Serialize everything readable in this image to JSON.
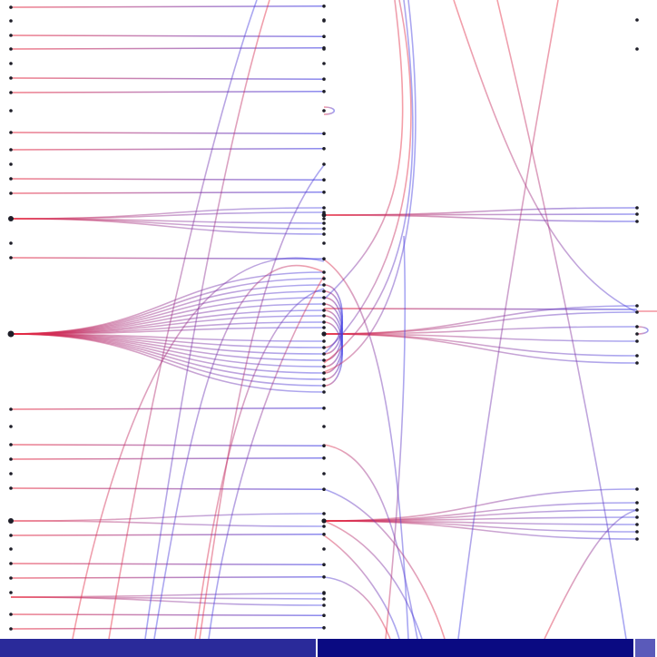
{
  "colors": {
    "background": "#ffffff",
    "edge_out": "#e8283c",
    "edge_in": "#3c3ce6",
    "node": "#1e1e28",
    "footer_left": "#2a2a9a",
    "footer_mid": "#0a0a82",
    "footer_right": "#5a5aba"
  },
  "footer": {
    "segments": [
      {
        "name": "footer-segment-left",
        "color_key": "footer_left"
      },
      {
        "name": "footer-segment-mid",
        "color_key": "footer_mid"
      },
      {
        "name": "footer-segment-right",
        "color_key": "footer_right"
      }
    ]
  },
  "diagram": {
    "columns": [
      "left",
      "mid",
      "right"
    ],
    "clusters": [
      {
        "source": "left",
        "target": "mid",
        "count": 16
      },
      {
        "source": "mid",
        "target": "right",
        "count": 5
      },
      {
        "source": "mid",
        "target": "right",
        "count": 7
      }
    ]
  }
}
